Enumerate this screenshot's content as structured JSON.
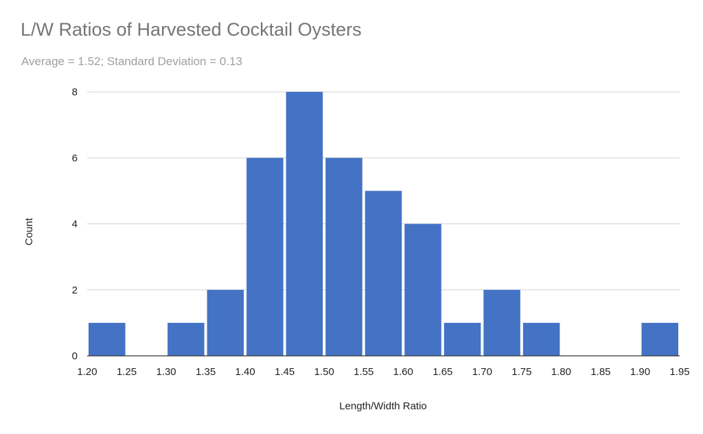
{
  "chart_data": {
    "type": "bar",
    "title": "L/W Ratios of Harvested Cocktail Oysters",
    "subtitle": "Average = 1.52; Standard Deviation = 0.13",
    "xlabel": "Length/Width Ratio",
    "ylabel": "Count",
    "x_ticks": [
      "1.20",
      "1.25",
      "1.30",
      "1.35",
      "1.40",
      "1.45",
      "1.50",
      "1.55",
      "1.60",
      "1.65",
      "1.70",
      "1.75",
      "1.80",
      "1.85",
      "1.90",
      "1.95"
    ],
    "y_ticks": [
      0,
      2,
      4,
      6,
      8
    ],
    "ylim": [
      0,
      8
    ],
    "xlim": [
      1.2,
      1.95
    ],
    "bins": [
      {
        "start": 1.2,
        "end": 1.25,
        "count": 1
      },
      {
        "start": 1.25,
        "end": 1.3,
        "count": 0
      },
      {
        "start": 1.3,
        "end": 1.35,
        "count": 1
      },
      {
        "start": 1.35,
        "end": 1.4,
        "count": 2
      },
      {
        "start": 1.4,
        "end": 1.45,
        "count": 6
      },
      {
        "start": 1.45,
        "end": 1.5,
        "count": 8
      },
      {
        "start": 1.5,
        "end": 1.55,
        "count": 6
      },
      {
        "start": 1.55,
        "end": 1.6,
        "count": 5
      },
      {
        "start": 1.6,
        "end": 1.65,
        "count": 4
      },
      {
        "start": 1.65,
        "end": 1.7,
        "count": 1
      },
      {
        "start": 1.7,
        "end": 1.75,
        "count": 2
      },
      {
        "start": 1.75,
        "end": 1.8,
        "count": 1
      },
      {
        "start": 1.8,
        "end": 1.85,
        "count": 0
      },
      {
        "start": 1.85,
        "end": 1.9,
        "count": 0
      },
      {
        "start": 1.9,
        "end": 1.95,
        "count": 1
      }
    ],
    "bar_color": "#4472c4",
    "grid": true,
    "legend": "none"
  }
}
